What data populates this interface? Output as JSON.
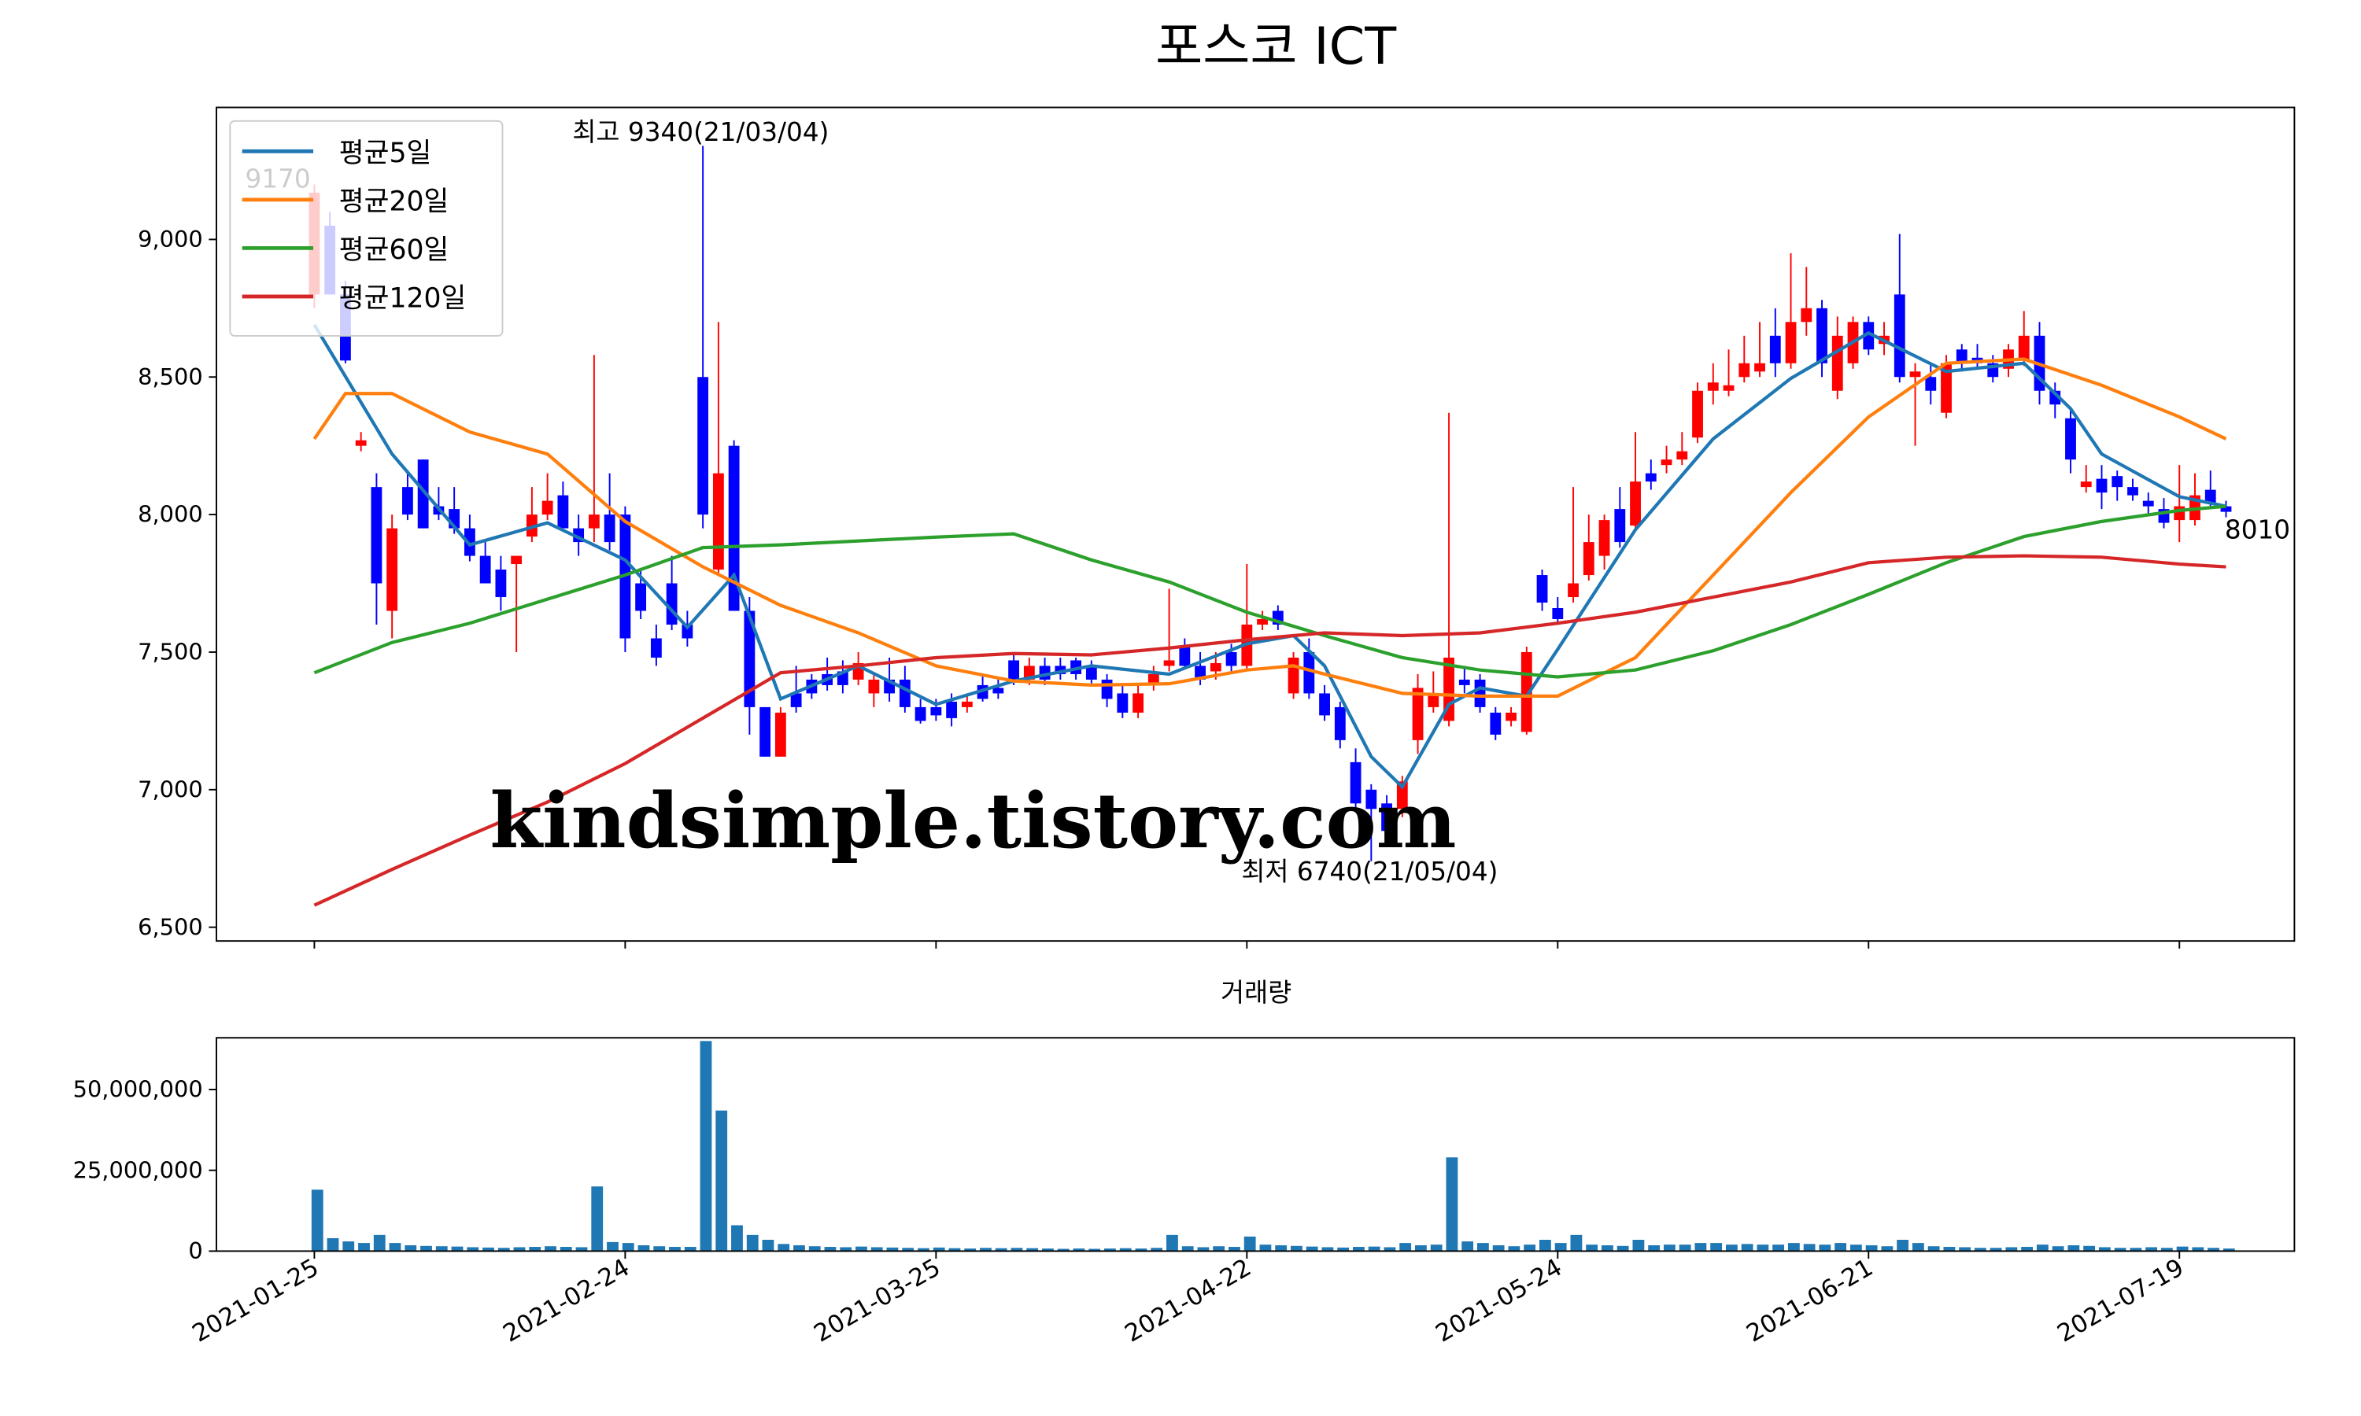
{
  "chart_data": [
    {
      "type": "candlestick",
      "title": "포스코 ICT",
      "open": [
        8800,
        9050,
        8800,
        8250,
        8100,
        7650,
        8100,
        8200,
        8030,
        8020,
        7950,
        7850,
        7800,
        7820,
        7920,
        8000,
        8070,
        7950,
        7950,
        8000,
        8000,
        7750,
        7550,
        7750,
        7600,
        8500,
        7800,
        8250,
        7650,
        7300,
        7120,
        7350,
        7400,
        7420,
        7430,
        7400,
        7350,
        7400,
        7400,
        7300,
        7300,
        7320,
        7300,
        7380,
        7370,
        7470,
        7400,
        7450,
        7450,
        7470,
        7450,
        7400,
        7350,
        7280,
        7380,
        7450,
        7520,
        7450,
        7430,
        7500,
        7450,
        7600,
        7650,
        7350,
        7500,
        7350,
        7300,
        7100,
        7000,
        6950,
        6930,
        7180,
        7300,
        7250,
        7400,
        7400,
        7280,
        7250,
        7210,
        7780,
        7660,
        7700,
        7780,
        7850,
        8020,
        7960,
        8150,
        8180,
        8200,
        8280,
        8450,
        8450,
        8500,
        8520,
        8650,
        8550,
        8700,
        8750,
        8450,
        8550,
        8700,
        8620,
        8800,
        8500,
        8500,
        8370,
        8600,
        8570,
        8550,
        8530,
        8560,
        8650,
        8450,
        8350,
        8100,
        8130,
        8140,
        8100,
        8050,
        8020,
        7980,
        7980,
        8090,
        8030
      ],
      "high": [
        9200,
        9100,
        8850,
        8300,
        8150,
        8000,
        8150,
        8200,
        8100,
        8100,
        8000,
        7900,
        7850,
        7850,
        8100,
        8150,
        8120,
        8000,
        8580,
        8150,
        8030,
        7800,
        7600,
        7850,
        7650,
        9340,
        8700,
        8270,
        7700,
        7300,
        7300,
        7450,
        7420,
        7480,
        7470,
        7500,
        7420,
        7480,
        7450,
        7330,
        7330,
        7350,
        7350,
        7420,
        7400,
        7500,
        7480,
        7480,
        7480,
        7480,
        7470,
        7420,
        7380,
        7380,
        7450,
        7730,
        7550,
        7500,
        7500,
        7530,
        7820,
        7650,
        7670,
        7500,
        7550,
        7380,
        7320,
        7150,
        7020,
        6980,
        7050,
        7420,
        7430,
        8370,
        7450,
        7420,
        7300,
        7300,
        7520,
        7800,
        7700,
        8100,
        8000,
        8000,
        8100,
        8300,
        8200,
        8250,
        8300,
        8480,
        8550,
        8600,
        8650,
        8700,
        8750,
        8950,
        8900,
        8780,
        8720,
        8720,
        8720,
        8700,
        9020,
        8550,
        8550,
        8580,
        8620,
        8620,
        8580,
        8620,
        8740,
        8700,
        8480,
        8380,
        8180,
        8180,
        8160,
        8130,
        8080,
        8060,
        8180,
        8150,
        8160,
        8050
      ],
      "low": [
        8750,
        8800,
        8550,
        8230,
        7600,
        7550,
        7980,
        7950,
        7980,
        7930,
        7830,
        7750,
        7650,
        7500,
        7900,
        7980,
        7950,
        7850,
        7900,
        7870,
        7500,
        7620,
        7450,
        7580,
        7520,
        7950,
        7780,
        7650,
        7200,
        7120,
        7120,
        7280,
        7330,
        7360,
        7350,
        7380,
        7300,
        7320,
        7280,
        7240,
        7250,
        7230,
        7280,
        7320,
        7330,
        7380,
        7380,
        7380,
        7400,
        7400,
        7380,
        7300,
        7260,
        7260,
        7360,
        7430,
        7440,
        7380,
        7400,
        7430,
        7440,
        7580,
        7580,
        7330,
        7330,
        7250,
        7150,
        6920,
        6740,
        6820,
        6900,
        7130,
        7280,
        7230,
        7350,
        7280,
        7180,
        7230,
        7200,
        7650,
        7600,
        7680,
        7760,
        7800,
        7880,
        7940,
        8090,
        8150,
        8180,
        8260,
        8400,
        8430,
        8480,
        8500,
        8500,
        8530,
        8650,
        8500,
        8420,
        8530,
        8580,
        8580,
        8480,
        8250,
        8400,
        8350,
        8520,
        8530,
        8480,
        8500,
        8540,
        8400,
        8350,
        8150,
        8080,
        8020,
        8050,
        8050,
        8000,
        7950,
        7900,
        7960,
        8020,
        7990
      ],
      "close": [
        9170,
        8800,
        8560,
        8270,
        7750,
        7950,
        8000,
        7950,
        8000,
        7950,
        7850,
        7750,
        7700,
        7850,
        8000,
        8050,
        7950,
        7900,
        8000,
        7900,
        7550,
        7650,
        7480,
        7600,
        7550,
        8000,
        8150,
        7650,
        7300,
        7120,
        7280,
        7300,
        7350,
        7380,
        7380,
        7460,
        7400,
        7350,
        7300,
        7250,
        7270,
        7260,
        7320,
        7330,
        7350,
        7400,
        7450,
        7400,
        7420,
        7420,
        7400,
        7330,
        7280,
        7350,
        7420,
        7470,
        7450,
        7400,
        7460,
        7450,
        7600,
        7620,
        7600,
        7480,
        7350,
        7270,
        7180,
        6950,
        6930,
        6850,
        7030,
        7370,
        7350,
        7480,
        7380,
        7300,
        7200,
        7280,
        7500,
        7680,
        7620,
        7750,
        7900,
        7980,
        7900,
        8120,
        8120,
        8200,
        8230,
        8450,
        8480,
        8470,
        8550,
        8550,
        8550,
        8700,
        8750,
        8550,
        8650,
        8700,
        8600,
        8650,
        8500,
        8520,
        8450,
        8550,
        8550,
        8550,
        8500,
        8600,
        8650,
        8450,
        8400,
        8200,
        8120,
        8080,
        8100,
        8070,
        8030,
        7970,
        8030,
        8070,
        8040,
        8010
      ],
      "up_color": "#ff0000",
      "down_color": "#0000ff",
      "series": [
        {
          "name": "평균5일",
          "color": "#1f77b4",
          "x": [
            0,
            5,
            10,
            15,
            20,
            24,
            27,
            30,
            35,
            40,
            45,
            50,
            55,
            60,
            63,
            65,
            68,
            70,
            73,
            75,
            78,
            80,
            85,
            90,
            95,
            100,
            105,
            110,
            113,
            115,
            120,
            123
          ],
          "values": [
            8690,
            8220,
            7890,
            7970,
            7835,
            7590,
            7780,
            7330,
            7450,
            7310,
            7395,
            7450,
            7420,
            7530,
            7560,
            7450,
            7120,
            7010,
            7310,
            7370,
            7340,
            7510,
            7945,
            8275,
            8495,
            8660,
            8520,
            8550,
            8385,
            8220,
            8065,
            8030
          ]
        },
        {
          "name": "평균20일",
          "color": "#ff7f0e",
          "x": [
            0,
            2,
            5,
            10,
            15,
            20,
            25,
            30,
            35,
            40,
            45,
            50,
            55,
            60,
            63,
            65,
            70,
            75,
            80,
            85,
            90,
            95,
            100,
            105,
            110,
            115,
            120,
            123
          ],
          "values": [
            8275,
            8440,
            8440,
            8300,
            8220,
            7975,
            7810,
            7670,
            7570,
            7450,
            7395,
            7380,
            7385,
            7435,
            7450,
            7420,
            7350,
            7340,
            7340,
            7480,
            7780,
            8080,
            8355,
            8550,
            8565,
            8470,
            8355,
            8275
          ]
        },
        {
          "name": "평균60일",
          "color": "#2ca02c",
          "x": [
            0,
            5,
            10,
            20,
            25,
            30,
            40,
            45,
            50,
            55,
            60,
            65,
            70,
            75,
            80,
            85,
            90,
            95,
            100,
            105,
            110,
            115,
            120,
            123
          ],
          "values": [
            7425,
            7535,
            7605,
            7780,
            7880,
            7890,
            7918,
            7930,
            7835,
            7755,
            7645,
            7560,
            7480,
            7435,
            7410,
            7435,
            7505,
            7600,
            7710,
            7825,
            7920,
            7975,
            8015,
            8030
          ]
        },
        {
          "name": "평균120일",
          "color": "#d62728",
          "x": [
            0,
            5,
            10,
            15,
            20,
            25,
            30,
            35,
            40,
            45,
            50,
            55,
            60,
            65,
            70,
            75,
            80,
            85,
            90,
            95,
            100,
            105,
            110,
            115,
            120,
            123
          ],
          "values": [
            6580,
            6710,
            6835,
            6955,
            7095,
            7260,
            7425,
            7450,
            7480,
            7495,
            7490,
            7515,
            7545,
            7570,
            7560,
            7570,
            7605,
            7645,
            7700,
            7755,
            7825,
            7845,
            7850,
            7845,
            7820,
            7810
          ]
        }
      ],
      "annotations": [
        {
          "text": "최고 9340(21/03/04)",
          "color": "#ff0000"
        },
        {
          "text": "최저 6740(21/05/04)",
          "color": "#0000ff"
        },
        {
          "text": "9170",
          "color": "#bbbbbb"
        },
        {
          "text": "8010",
          "color": "#000000"
        }
      ],
      "watermark": "kindsimple.tistory.com",
      "legend": "upper left",
      "xlim": [
        -6.3,
        127.4
      ],
      "ylim": [
        6450,
        9480
      ],
      "yticks": [
        {
          "value": 6500,
          "label": "6,500"
        },
        {
          "value": 7000,
          "label": "7,000"
        },
        {
          "value": 7500,
          "label": "7,500"
        },
        {
          "value": 8000,
          "label": "8,000"
        },
        {
          "value": 8500,
          "label": "8,500"
        },
        {
          "value": 9000,
          "label": "9,000"
        }
      ]
    },
    {
      "type": "bar",
      "title": "거래량",
      "color": "#1f77b4",
      "values": [
        19000000,
        4000000,
        3000000,
        2500000,
        5000000,
        2500000,
        1800000,
        1600000,
        1500000,
        1400000,
        1200000,
        1100000,
        1000000,
        1200000,
        1300000,
        1500000,
        1300000,
        1200000,
        20000000,
        2800000,
        2500000,
        1800000,
        1500000,
        1300000,
        1300000,
        65000000,
        43500000,
        8000000,
        5000000,
        3500000,
        2200000,
        1800000,
        1500000,
        1300000,
        1200000,
        1400000,
        1200000,
        1100000,
        1000000,
        900000,
        1100000,
        900000,
        800000,
        1000000,
        900000,
        1000000,
        900000,
        800000,
        700000,
        800000,
        700000,
        800000,
        900000,
        800000,
        1000000,
        5000000,
        1500000,
        1200000,
        1500000,
        1300000,
        4500000,
        2000000,
        1800000,
        1600000,
        1400000,
        1200000,
        1100000,
        1300000,
        1400000,
        1200000,
        2500000,
        1800000,
        2000000,
        29000000,
        3000000,
        2500000,
        1800000,
        1500000,
        2000000,
        3500000,
        2500000,
        5000000,
        2000000,
        1800000,
        1600000,
        3500000,
        1800000,
        2000000,
        2000000,
        2500000,
        2500000,
        2000000,
        2200000,
        2000000,
        2000000,
        2500000,
        2200000,
        2000000,
        2500000,
        2000000,
        1800000,
        1500000,
        3500000,
        2500000,
        1500000,
        1300000,
        1200000,
        1000000,
        1000000,
        1200000,
        1300000,
        2000000,
        1500000,
        1800000,
        1600000,
        1200000,
        1000000,
        1000000,
        1200000,
        1000000,
        1400000,
        1200000,
        1000000,
        800000
      ],
      "xlim": [
        -6.3,
        127.4
      ],
      "ylim": [
        0,
        66000000
      ],
      "yticks": [
        0,
        {
          "value": 25000000,
          "label": "25,000,000"
        },
        {
          "value": 50000000,
          "label": "50,000,000"
        }
      ],
      "xticks": [
        {
          "value": 0,
          "label": "2021-01-25"
        },
        {
          "value": 20,
          "label": "2021-02-24"
        },
        {
          "value": 40,
          "label": "2021-03-25"
        },
        {
          "value": 60,
          "label": "2021-04-22"
        },
        {
          "value": 80,
          "label": "2021-05-24"
        },
        {
          "value": 100,
          "label": "2021-06-21"
        },
        {
          "value": 120,
          "label": "2021-07-19"
        }
      ]
    }
  ]
}
